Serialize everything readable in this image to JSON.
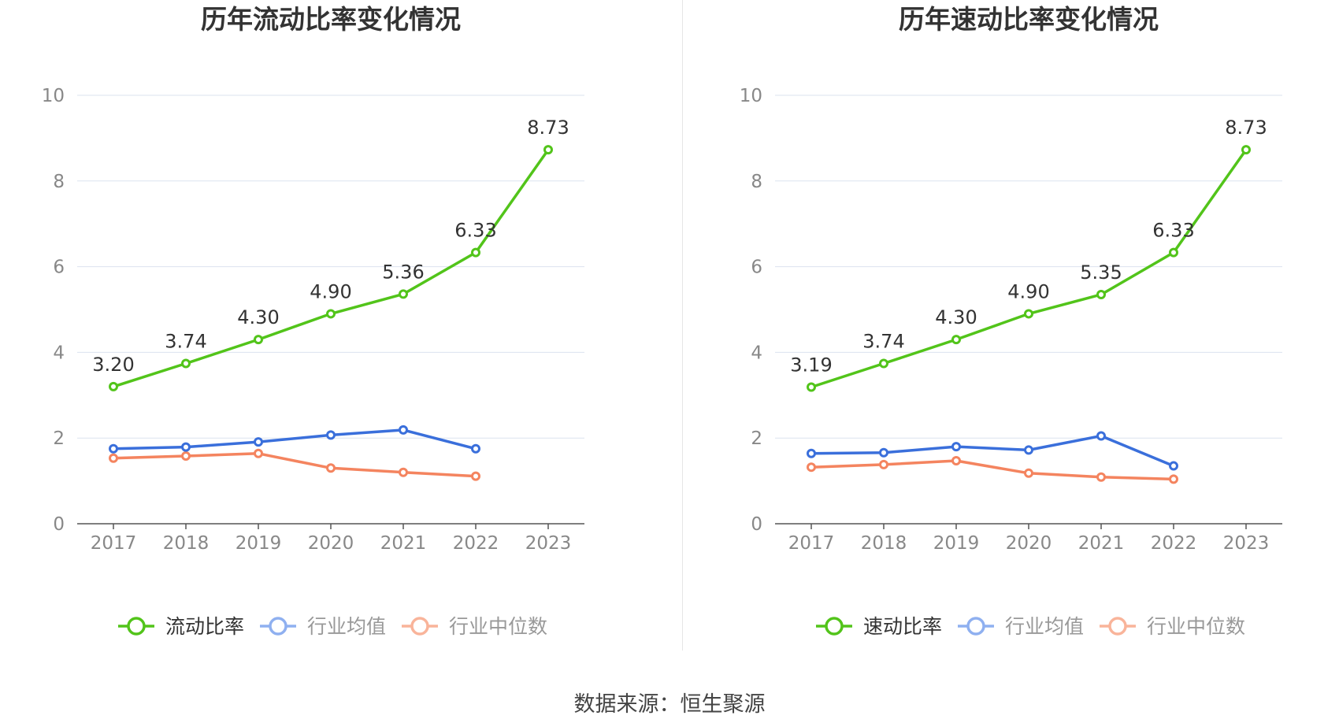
{
  "footer": {
    "source": "数据来源：恒生聚源"
  },
  "colors": {
    "main": "#52c41a",
    "avg": "#3a6fdb",
    "median": "#f4845f",
    "avg_legend": "#8fb0f0",
    "median_legend": "#f9b49a",
    "grid": "#dbe3ef",
    "axis": "#555555",
    "tick": "#888888"
  },
  "chart_data": [
    {
      "type": "line",
      "title": "历年流动比率变化情况",
      "categories": [
        "2017",
        "2018",
        "2019",
        "2020",
        "2021",
        "2022",
        "2023"
      ],
      "ylim": [
        0,
        10
      ],
      "yticks": [
        0,
        2,
        4,
        6,
        8,
        10
      ],
      "grid": true,
      "legend_position": "bottom",
      "series": [
        {
          "name": "流动比率",
          "color": "#52c41a",
          "values": [
            3.2,
            3.74,
            4.3,
            4.9,
            5.36,
            6.33,
            8.73
          ],
          "labels": [
            "3.20",
            "3.74",
            "4.30",
            "4.90",
            "5.36",
            "6.33",
            "8.73"
          ]
        },
        {
          "name": "行业均值",
          "color": "#3a6fdb",
          "values": [
            1.75,
            1.79,
            1.91,
            2.07,
            2.19,
            1.75,
            null
          ]
        },
        {
          "name": "行业中位数",
          "color": "#f4845f",
          "values": [
            1.53,
            1.58,
            1.64,
            1.3,
            1.2,
            1.11,
            null
          ]
        }
      ]
    },
    {
      "type": "line",
      "title": "历年速动比率变化情况",
      "categories": [
        "2017",
        "2018",
        "2019",
        "2020",
        "2021",
        "2022",
        "2023"
      ],
      "ylim": [
        0,
        10
      ],
      "yticks": [
        0,
        2,
        4,
        6,
        8,
        10
      ],
      "grid": true,
      "legend_position": "bottom",
      "series": [
        {
          "name": "速动比率",
          "color": "#52c41a",
          "values": [
            3.19,
            3.74,
            4.3,
            4.9,
            5.35,
            6.33,
            8.73
          ],
          "labels": [
            "3.19",
            "3.74",
            "4.30",
            "4.90",
            "5.35",
            "6.33",
            "8.73"
          ]
        },
        {
          "name": "行业均值",
          "color": "#3a6fdb",
          "values": [
            1.64,
            1.66,
            1.8,
            1.72,
            2.05,
            1.35,
            null
          ]
        },
        {
          "name": "行业中位数",
          "color": "#f4845f",
          "values": [
            1.32,
            1.38,
            1.47,
            1.18,
            1.09,
            1.04,
            null
          ]
        }
      ]
    }
  ]
}
